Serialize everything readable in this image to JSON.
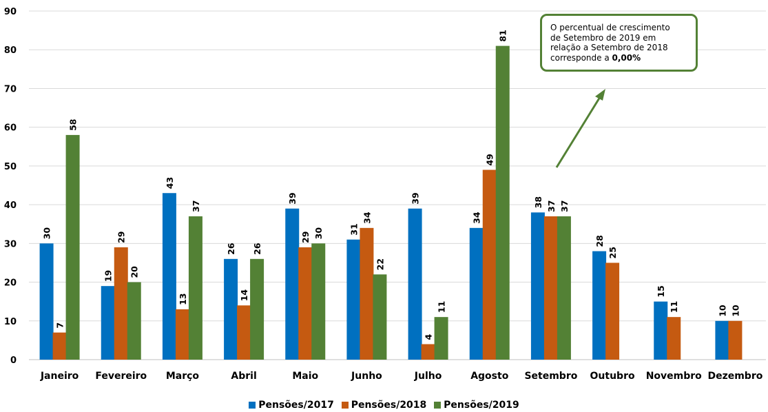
{
  "chart_data": {
    "type": "bar",
    "categories": [
      "Janeiro",
      "Fevereiro",
      "Março",
      "Abril",
      "Maio",
      "Junho",
      "Julho",
      "Agosto",
      "Setembro",
      "Outubro",
      "Novembro",
      "Dezembro"
    ],
    "series": [
      {
        "name": "Pensões/2017",
        "color": "#0070C0",
        "values": [
          30,
          19,
          43,
          26,
          39,
          31,
          39,
          34,
          38,
          28,
          15,
          10
        ]
      },
      {
        "name": "Pensões/2018",
        "color": "#C55A11",
        "values": [
          7,
          29,
          13,
          14,
          29,
          34,
          4,
          49,
          37,
          25,
          11,
          10
        ]
      },
      {
        "name": "Pensões/2019",
        "color": "#538135",
        "values": [
          58,
          20,
          37,
          26,
          30,
          22,
          11,
          81,
          37,
          null,
          null,
          null
        ]
      }
    ],
    "ylim": [
      0,
      90
    ],
    "yticks": [
      0,
      10,
      20,
      30,
      40,
      50,
      60,
      70,
      80,
      90
    ],
    "grid": true,
    "legend_position": "bottom",
    "annotation": {
      "line1": "O percentual  de crescimento",
      "line2": "de Setembro  de 2019 em",
      "line3": "relação a Setembro  de 2018",
      "line4_prefix": "corresponde  a ",
      "line4_value": "0,00%",
      "arrow_color": "#538135"
    }
  }
}
